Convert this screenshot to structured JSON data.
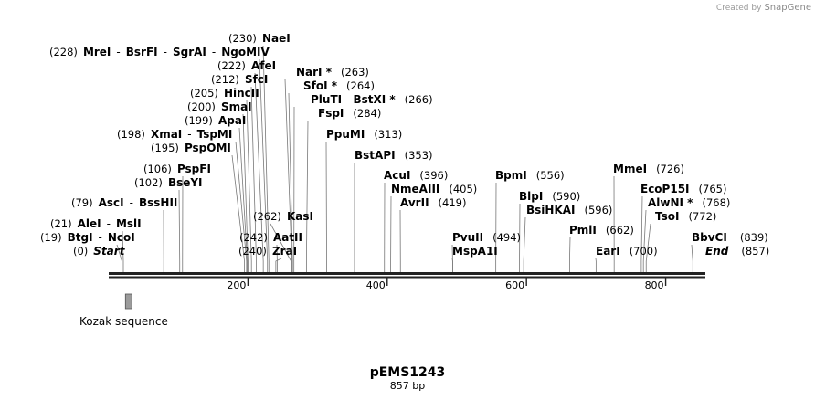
{
  "branding": {
    "prefix": "Created by",
    "name": "SnapGene"
  },
  "plasmid": {
    "name": "pEMS1243",
    "length_label": "857 bp",
    "length": 857
  },
  "scale": {
    "ticks": [
      200,
      400,
      600,
      800
    ]
  },
  "features": [
    {
      "name": "Kozak sequence",
      "start": 24,
      "end": 34
    }
  ],
  "sites": [
    {
      "pos_label": "(230)",
      "enzymes": [
        "NaeI"
      ],
      "pos": 230
    },
    {
      "pos_label": "(228)",
      "enzymes": [
        "MreI",
        "BsrFI",
        "SgrAI",
        "NgoMIV"
      ],
      "pos": 228
    },
    {
      "pos_label": "(222)",
      "enzymes": [
        "AfeI"
      ],
      "pos": 222
    },
    {
      "pos_label": "(212)",
      "enzymes": [
        "SfcI"
      ],
      "pos": 212
    },
    {
      "pos_label": "(205)",
      "enzymes": [
        "HincII"
      ],
      "pos": 205
    },
    {
      "pos_label": "(200)",
      "enzymes": [
        "SmaI"
      ],
      "pos": 200
    },
    {
      "pos_label": "(199)",
      "enzymes": [
        "ApaI"
      ],
      "pos": 199
    },
    {
      "pos_label": "(198)",
      "enzymes": [
        "XmaI",
        "TspMI"
      ],
      "pos": 198
    },
    {
      "pos_label": "(195)",
      "enzymes": [
        "PspOMI"
      ],
      "pos": 195
    },
    {
      "pos_label": "(106)",
      "enzymes": [
        "PspFI"
      ],
      "pos": 106
    },
    {
      "pos_label": "(102)",
      "enzymes": [
        "BseYI"
      ],
      "pos": 102
    },
    {
      "pos_label": "(79)",
      "enzymes": [
        "AscI",
        "BssHII"
      ],
      "pos": 79
    },
    {
      "pos_label": "(21)",
      "enzymes": [
        "AleI",
        "MslI"
      ],
      "pos": 21
    },
    {
      "pos_label": "(19)",
      "enzymes": [
        "BtgI",
        "NcoI"
      ],
      "pos": 19
    },
    {
      "pos_label": "(0)",
      "enzymes": [
        "Start"
      ],
      "pos": 0
    },
    {
      "pos_label": "(262)",
      "enzymes": [
        "KasI"
      ],
      "pos": 262
    },
    {
      "pos_label": "(242)",
      "enzymes": [
        "AatII"
      ],
      "pos": 242
    },
    {
      "pos_label": "(240)",
      "enzymes": [
        "ZraI"
      ],
      "pos": 240
    },
    {
      "pos_label": "(263)",
      "enzymes": [
        "NarI *"
      ],
      "pos": 263
    },
    {
      "pos_label": "(264)",
      "enzymes": [
        "SfoI *"
      ],
      "pos": 264
    },
    {
      "pos_label": "(266)",
      "enzymes": [
        "PluTI",
        "BstXI *"
      ],
      "pos": 266
    },
    {
      "pos_label": "(284)",
      "enzymes": [
        "FspI"
      ],
      "pos": 284
    },
    {
      "pos_label": "(313)",
      "enzymes": [
        "PpuMI"
      ],
      "pos": 313
    },
    {
      "pos_label": "(353)",
      "enzymes": [
        "BstAPI"
      ],
      "pos": 353
    },
    {
      "pos_label": "(396)",
      "enzymes": [
        "AcuI"
      ],
      "pos": 396
    },
    {
      "pos_label": "(405)",
      "enzymes": [
        "NmeAIII"
      ],
      "pos": 405
    },
    {
      "pos_label": "(419)",
      "enzymes": [
        "AvrII"
      ],
      "pos": 419
    },
    {
      "pos_label": "(494)",
      "enzymes": [
        "PvuII"
      ],
      "pos": 494
    },
    {
      "pos_label": "",
      "enzymes": [
        "MspA1I"
      ],
      "pos": 494
    },
    {
      "pos_label": "(556)",
      "enzymes": [
        "BpmI"
      ],
      "pos": 556
    },
    {
      "pos_label": "(590)",
      "enzymes": [
        "BlpI"
      ],
      "pos": 590
    },
    {
      "pos_label": "(596)",
      "enzymes": [
        "BsiHKAI"
      ],
      "pos": 596
    },
    {
      "pos_label": "(662)",
      "enzymes": [
        "PmlI"
      ],
      "pos": 662
    },
    {
      "pos_label": "(700)",
      "enzymes": [
        "EarI"
      ],
      "pos": 700
    },
    {
      "pos_label": "(726)",
      "enzymes": [
        "MmeI"
      ],
      "pos": 726
    },
    {
      "pos_label": "(765)",
      "enzymes": [
        "EcoP15I"
      ],
      "pos": 765
    },
    {
      "pos_label": "(768)",
      "enzymes": [
        "AlwNI *"
      ],
      "pos": 768
    },
    {
      "pos_label": "(772)",
      "enzymes": [
        "TsoI"
      ],
      "pos": 772
    },
    {
      "pos_label": "(839)",
      "enzymes": [
        "BbvCI"
      ],
      "pos": 839
    },
    {
      "pos_label": "(857)",
      "enzymes": [
        "End"
      ],
      "pos": 857
    }
  ]
}
